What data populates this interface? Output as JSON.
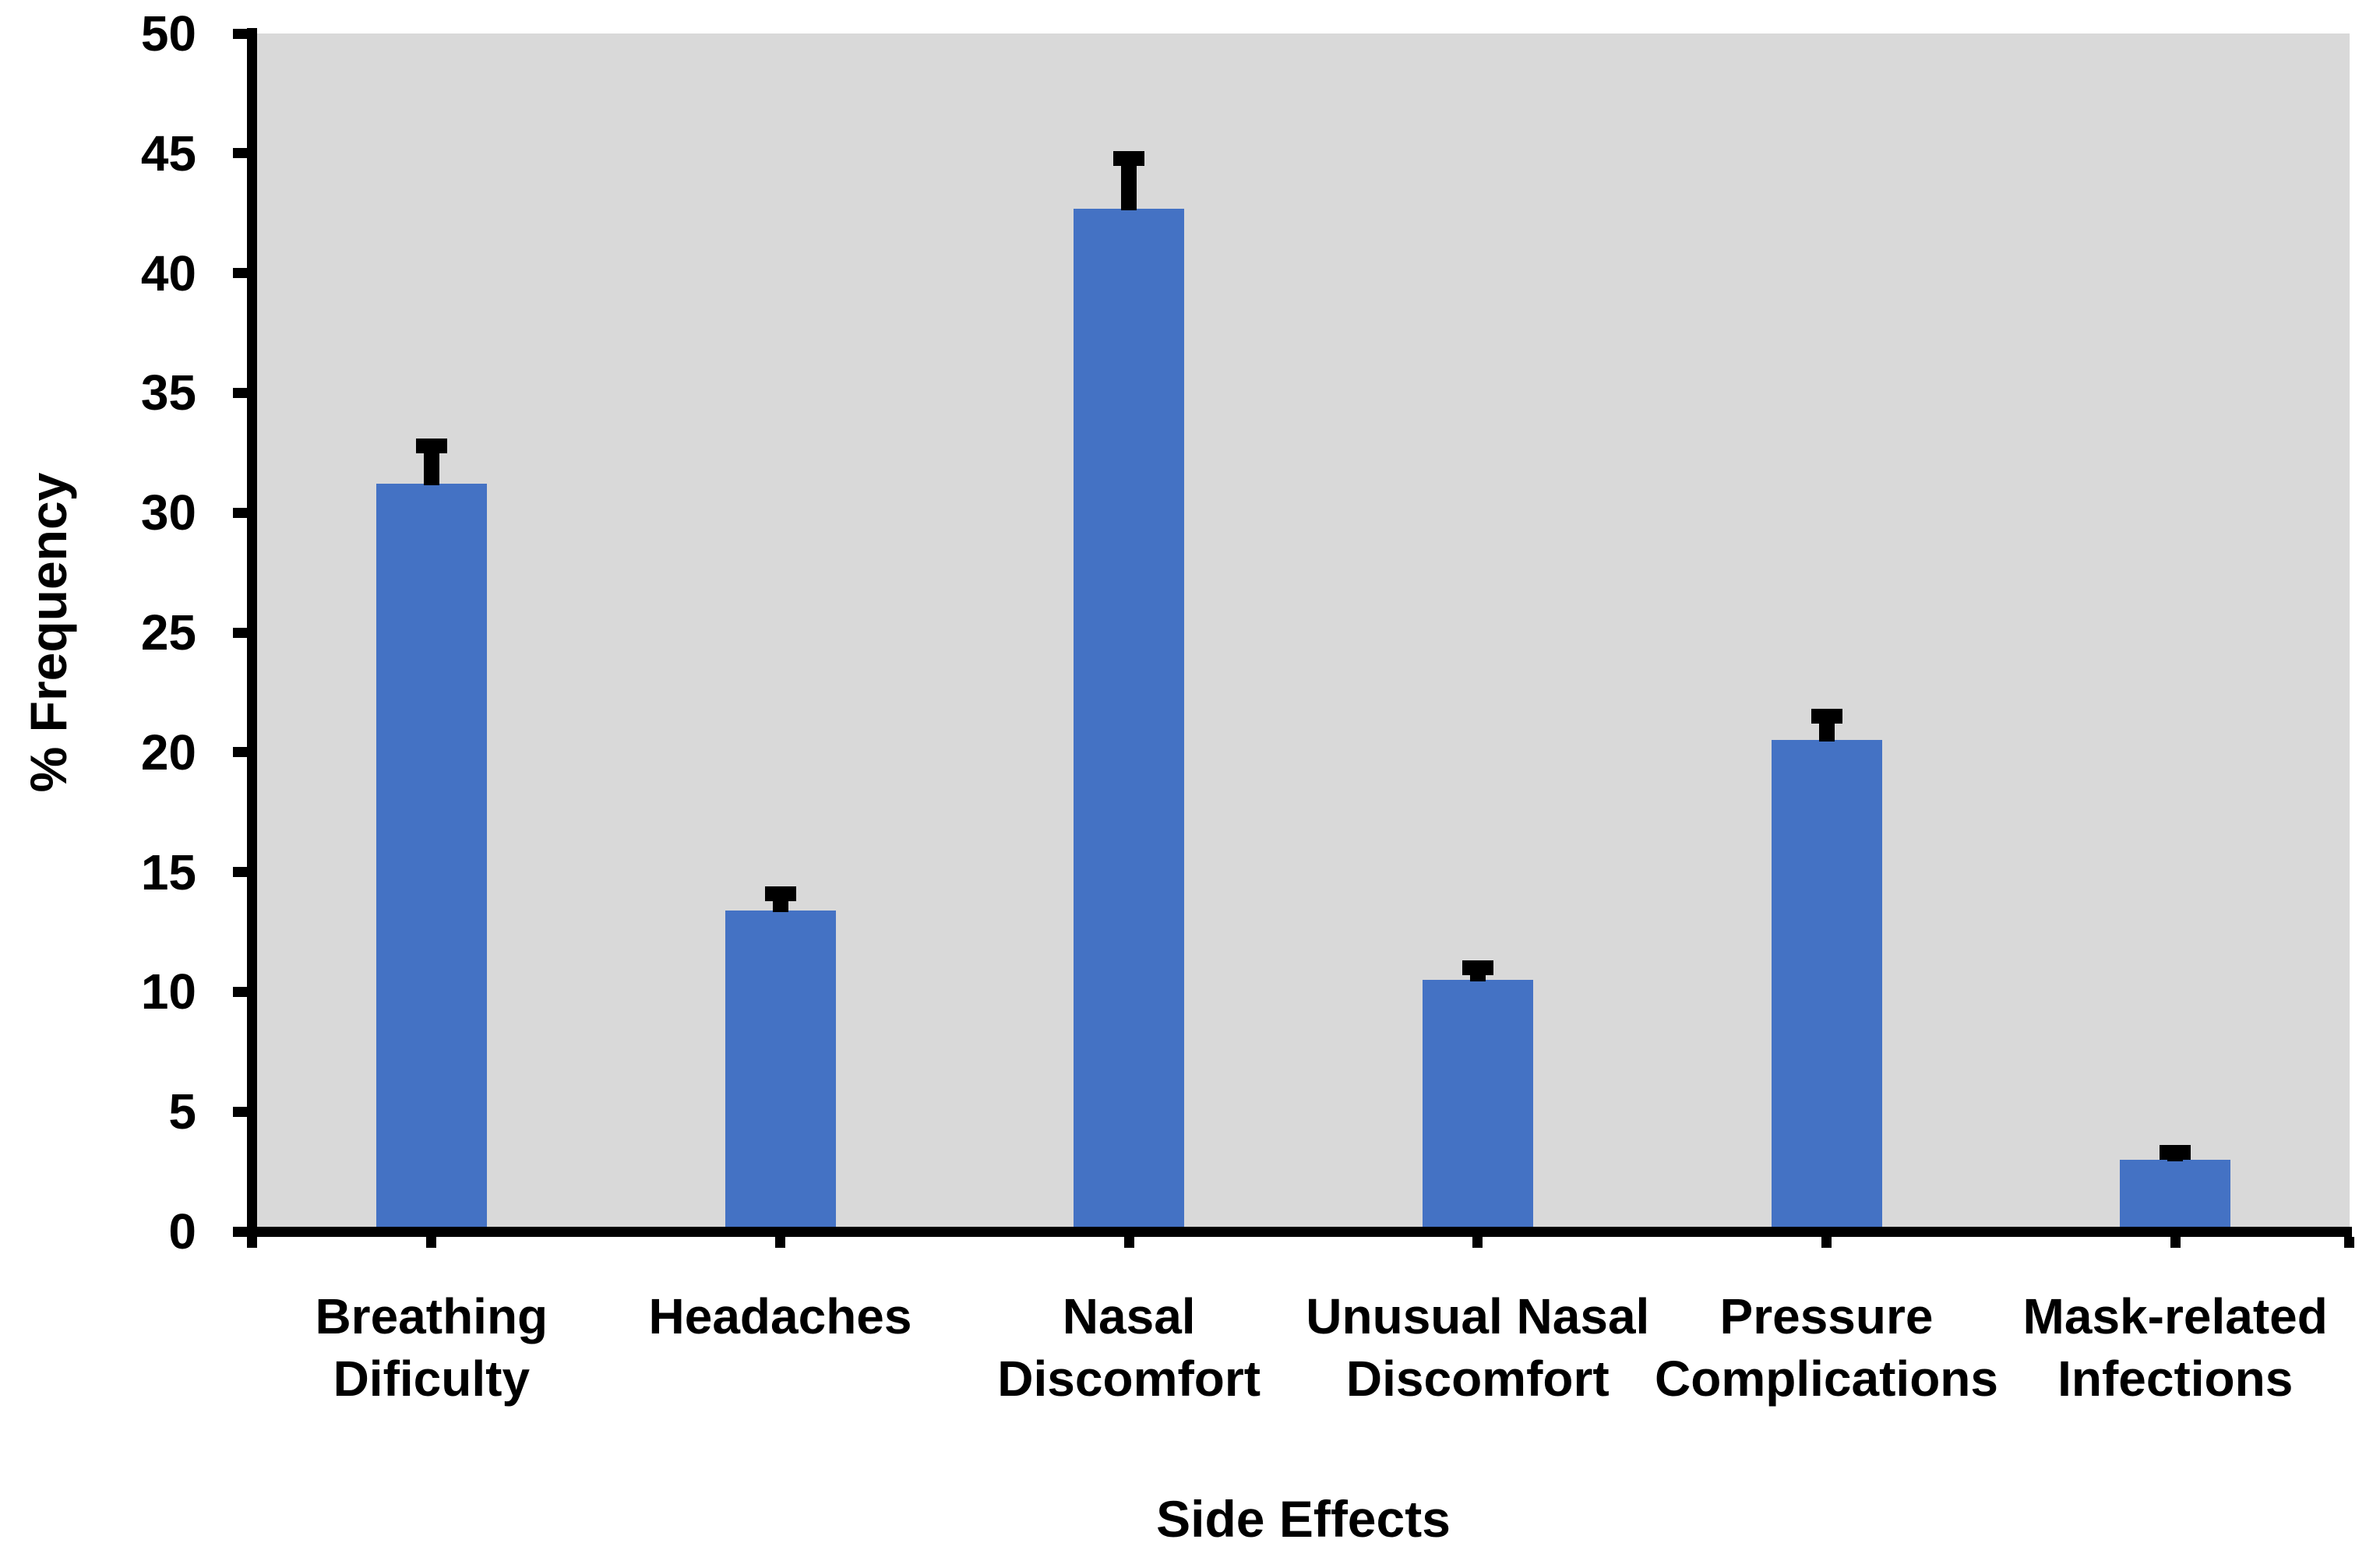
{
  "chart_data": {
    "type": "bar",
    "title": "",
    "categories": [
      "Breathing\nDificulty",
      "Headaches",
      "Nasal\nDiscomfort",
      "Unusual Nasal\nDiscomfort",
      "Pressure\nComplications",
      "Mask-related\nInfections"
    ],
    "values": [
      31.2,
      13.4,
      42.7,
      10.5,
      20.5,
      3.0
    ],
    "error_upper": [
      1.6,
      0.7,
      2.1,
      0.5,
      1.0,
      0.3
    ],
    "xlabel": "Side Effects",
    "ylabel": "% Frequency",
    "ylim": [
      0,
      50
    ],
    "yticks": [
      0,
      5,
      10,
      15,
      20,
      25,
      30,
      35,
      40,
      45,
      50
    ],
    "grid": false,
    "legend": null,
    "bar_color": "#4472C4",
    "error_color": "#000000",
    "plot_background": "#D9D9D9",
    "axis_color": "#000000",
    "page_background": "#FFFFFF"
  }
}
